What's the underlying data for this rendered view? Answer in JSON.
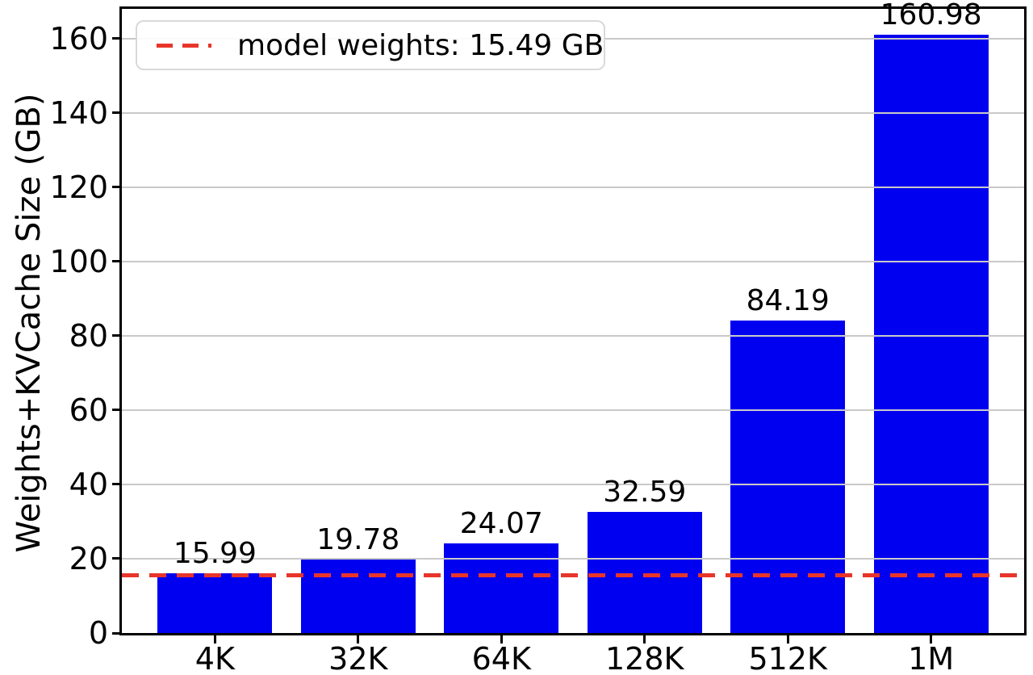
{
  "chart_data": {
    "type": "bar",
    "categories": [
      "4K",
      "32K",
      "64K",
      "128K",
      "512K",
      "1M"
    ],
    "values": [
      15.99,
      19.78,
      24.07,
      32.59,
      84.19,
      160.98
    ],
    "bar_labels": [
      "15.99",
      "19.78",
      "24.07",
      "32.59",
      "84.19",
      "160.98"
    ],
    "title": "",
    "xlabel": "",
    "ylabel": "Weights+KVCache Size (GB)",
    "ylim": [
      0,
      168
    ],
    "yticks": [
      0,
      20,
      40,
      60,
      80,
      100,
      120,
      140,
      160
    ],
    "grid": true,
    "grid_over_bars": true,
    "legend": {
      "position": "upper left",
      "label": "model weights: 15.49 GB"
    },
    "reference_line": {
      "value": 15.49,
      "style": "dashed",
      "orientation": "horizontal"
    },
    "colors": {
      "bar": "#0000f0",
      "line": "#e8352b",
      "grid": "#c9c9c9",
      "axis": "#000000"
    }
  }
}
